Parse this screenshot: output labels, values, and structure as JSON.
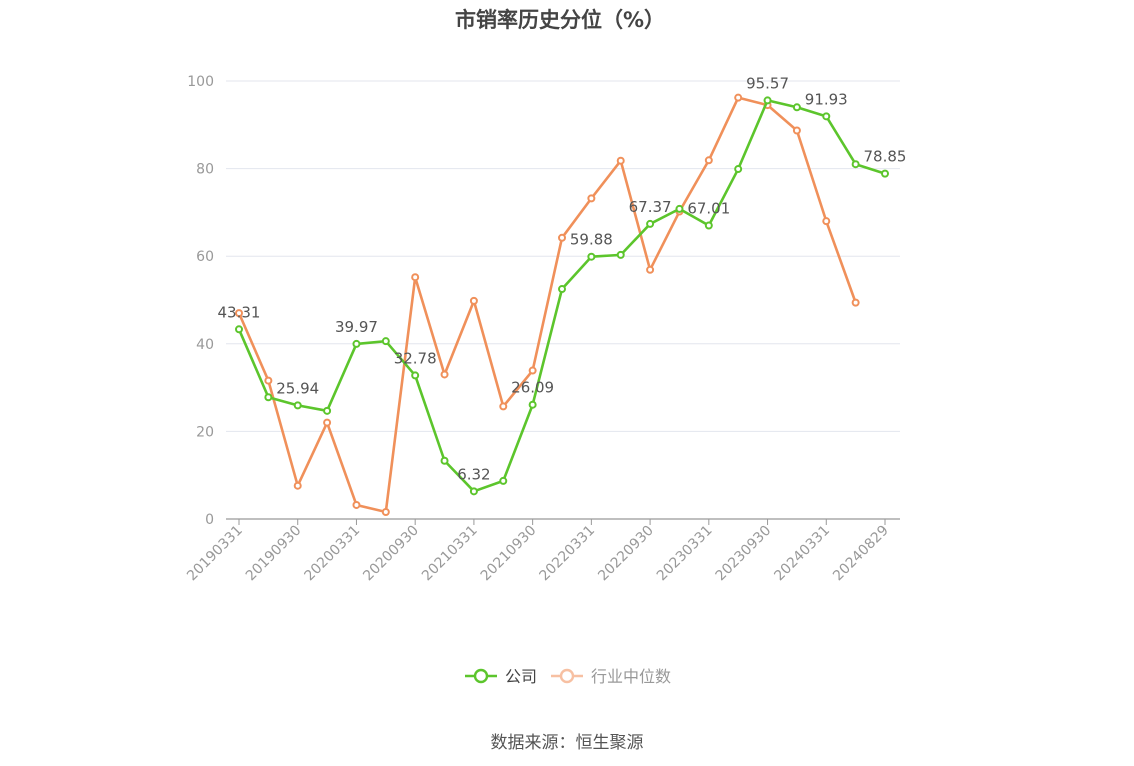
{
  "chart_data": {
    "type": "line",
    "title": "市销率历史分位（%）",
    "xlabel": "",
    "ylabel": "",
    "ylim": [
      0,
      100
    ],
    "y_ticks": [
      0,
      20,
      40,
      60,
      80,
      100
    ],
    "grid": true,
    "legend_position": "bottom",
    "x": [
      "20190331",
      "20190630",
      "20190930",
      "20191231",
      "20200331",
      "20200630",
      "20200930",
      "20201231",
      "20210331",
      "20210630",
      "20210930",
      "20211231",
      "20220331",
      "20220630",
      "20220930",
      "20221231",
      "20230331",
      "20230630",
      "20230930",
      "20231231",
      "20240331",
      "20240630",
      "20240829"
    ],
    "x_tick_labels": [
      "20190331",
      "20190930",
      "20200331",
      "20200930",
      "20210331",
      "20210930",
      "20220331",
      "20220930",
      "20230331",
      "20230930",
      "20240331",
      "20240829"
    ],
    "series": [
      {
        "name": "公司",
        "color": "#5cc52c",
        "values": [
          43.31,
          27.8,
          25.94,
          24.7,
          39.97,
          40.6,
          32.78,
          13.3,
          6.32,
          8.7,
          26.09,
          52.5,
          59.88,
          60.3,
          67.37,
          70.8,
          67.01,
          79.9,
          95.57,
          94.0,
          91.93,
          81.0,
          78.85
        ],
        "labels": {
          "0": "43.31",
          "2": "25.94",
          "4": "39.97",
          "6": "32.78",
          "8": "6.32",
          "10": "26.09",
          "12": "59.88",
          "14": "67.37",
          "16": "67.01",
          "18": "95.57",
          "20": "91.93",
          "22": "78.85"
        }
      },
      {
        "name": "行业中位数",
        "color": "#f0905a",
        "values": [
          47.0,
          31.6,
          7.6,
          22.0,
          3.2,
          1.6,
          55.2,
          33.0,
          49.8,
          25.7,
          33.9,
          64.2,
          73.2,
          81.8,
          56.9,
          70.2,
          81.9,
          96.2,
          94.5,
          88.7,
          68.0,
          49.4,
          null
        ]
      }
    ]
  },
  "legend": {
    "company": "公司",
    "industry": "行业中位数"
  },
  "source": "数据来源：恒生聚源"
}
